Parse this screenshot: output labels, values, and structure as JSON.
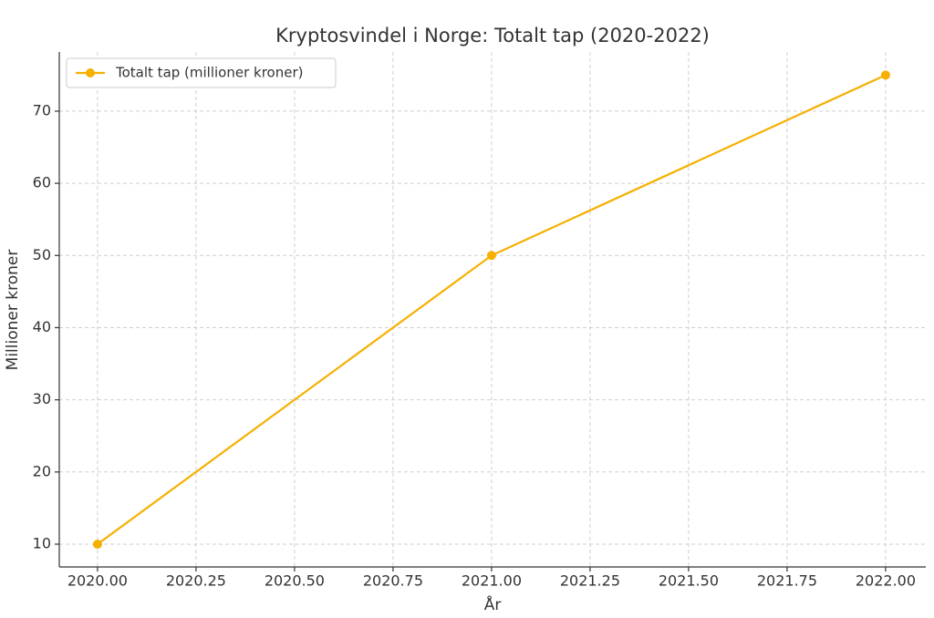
{
  "chart_data": {
    "type": "line",
    "title": "Kryptosvindel i Norge: Totalt tap (2020-2022)",
    "x_label": "År",
    "y_label": "Millioner kroner",
    "x": [
      2020,
      2021,
      2022
    ],
    "series": [
      {
        "name": "Totalt tap (millioner kroner)",
        "color": "#f5b000",
        "values": [
          10,
          50,
          75
        ]
      }
    ],
    "xlim": [
      2019.903,
      2022.102
    ],
    "xticks": [
      {
        "value": 2020,
        "label": "2020.00"
      },
      2020.25,
      {
        "value": 2020.5,
        "label": "2020.50"
      },
      2020.75,
      {
        "value": 2021,
        "label": "2021.00"
      },
      2021.25,
      {
        "value": 2021.5,
        "label": "2021.50"
      },
      2021.75,
      {
        "value": 2022,
        "label": "2022.00"
      }
    ],
    "ylim": [
      6.84,
      78.2
    ],
    "yticks": [
      10,
      20,
      30,
      40,
      50,
      60,
      70
    ],
    "grid": true,
    "legend": "upper left"
  }
}
